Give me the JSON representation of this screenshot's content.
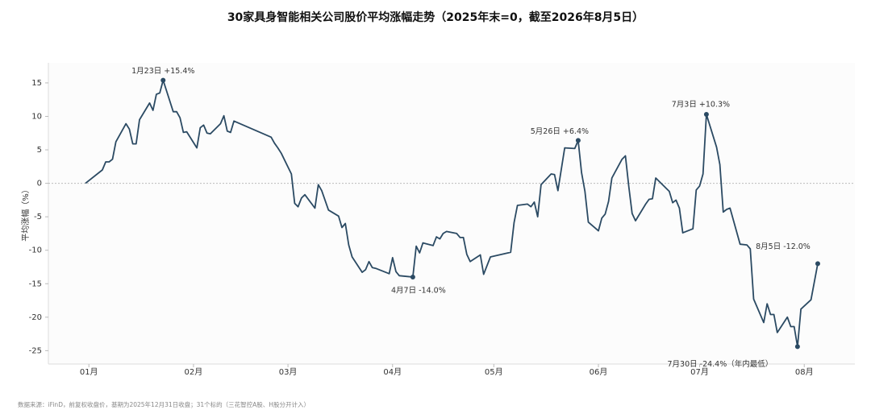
{
  "chart_data": {
    "type": "line",
    "title": "30家具身智能相关公司股价平均涨幅走势（2025年末=0，截至2026年8月5日）",
    "y_label": "平均涨幅（%）",
    "source": "数据来源：iFinD，前复权收盘价，基期为2025年12月31日收盘；31个标的（三花智控A股、H股分开计入）",
    "x": [
      "2025-12-31",
      "2026-01-05",
      "2026-01-06",
      "2026-01-07",
      "2026-01-08",
      "2026-01-09",
      "2026-01-12",
      "2026-01-13",
      "2026-01-14",
      "2026-01-15",
      "2026-01-16",
      "2026-01-19",
      "2026-01-20",
      "2026-01-21",
      "2026-01-22",
      "2026-01-23",
      "2026-01-26",
      "2026-01-27",
      "2026-01-28",
      "2026-01-29",
      "2026-01-30",
      "2026-02-02",
      "2026-02-03",
      "2026-02-04",
      "2026-02-05",
      "2026-02-06",
      "2026-02-09",
      "2026-02-10",
      "2026-02-11",
      "2026-02-12",
      "2026-02-13",
      "2026-02-24",
      "2026-02-25",
      "2026-02-26",
      "2026-02-27",
      "2026-03-02",
      "2026-03-03",
      "2026-03-04",
      "2026-03-05",
      "2026-03-06",
      "2026-03-09",
      "2026-03-10",
      "2026-03-11",
      "2026-03-13",
      "2026-03-16",
      "2026-03-17",
      "2026-03-18",
      "2026-03-19",
      "2026-03-20",
      "2026-03-23",
      "2026-03-24",
      "2026-03-25",
      "2026-03-26",
      "2026-03-27",
      "2026-03-31",
      "2026-04-01",
      "2026-04-02",
      "2026-04-03",
      "2026-04-07",
      "2026-04-08",
      "2026-04-09",
      "2026-04-10",
      "2026-04-13",
      "2026-04-14",
      "2026-04-15",
      "2026-04-16",
      "2026-04-17",
      "2026-04-20",
      "2026-04-21",
      "2026-04-22",
      "2026-04-23",
      "2026-04-24",
      "2026-04-27",
      "2026-04-28",
      "2026-04-30",
      "2026-05-06",
      "2026-05-07",
      "2026-05-08",
      "2026-05-11",
      "2026-05-12",
      "2026-05-13",
      "2026-05-14",
      "2026-05-15",
      "2026-05-18",
      "2026-05-19",
      "2026-05-20",
      "2026-05-22",
      "2026-05-25",
      "2026-05-26",
      "2026-05-27",
      "2026-05-28",
      "2026-05-29",
      "2026-06-01",
      "2026-06-02",
      "2026-06-03",
      "2026-06-04",
      "2026-06-05",
      "2026-06-08",
      "2026-06-09",
      "2026-06-10",
      "2026-06-11",
      "2026-06-12",
      "2026-06-15",
      "2026-06-16",
      "2026-06-17",
      "2026-06-18",
      "2026-06-22",
      "2026-06-23",
      "2026-06-24",
      "2026-06-25",
      "2026-06-26",
      "2026-06-29",
      "2026-06-30",
      "2026-07-01",
      "2026-07-02",
      "2026-07-03",
      "2026-07-06",
      "2026-07-07",
      "2026-07-08",
      "2026-07-09",
      "2026-07-10",
      "2026-07-13",
      "2026-07-15",
      "2026-07-16",
      "2026-07-17",
      "2026-07-20",
      "2026-07-21",
      "2026-07-22",
      "2026-07-23",
      "2026-07-24",
      "2026-07-27",
      "2026-07-28",
      "2026-07-29",
      "2026-07-30",
      "2026-07-31",
      "2026-08-03",
      "2026-08-05"
    ],
    "series": [
      {
        "color": "#2b4a63",
        "values": [
          0,
          2.0,
          3.2,
          3.2,
          3.6,
          6.2,
          8.9,
          8.1,
          5.9,
          5.9,
          9.5,
          12.0,
          10.9,
          13.3,
          13.5,
          15.4,
          10.7,
          10.7,
          9.8,
          7.6,
          7.7,
          5.3,
          8.3,
          8.7,
          7.5,
          7.4,
          8.9,
          10.1,
          7.8,
          7.6,
          9.3,
          6.9,
          6.0,
          5.3,
          4.5,
          1.4,
          -3.0,
          -3.5,
          -2.2,
          -1.7,
          -3.7,
          -0.2,
          -1.1,
          -4.0,
          -4.9,
          -6.6,
          -6.0,
          -9.2,
          -11.0,
          -13.3,
          -12.9,
          -11.7,
          -12.6,
          -12.7,
          -13.5,
          -11.1,
          -13.2,
          -13.8,
          -14.0,
          -9.4,
          -10.4,
          -8.9,
          -9.3,
          -8.0,
          -8.3,
          -7.5,
          -7.2,
          -7.5,
          -8.1,
          -8.1,
          -10.6,
          -11.7,
          -10.7,
          -13.6,
          -11.0,
          -10.3,
          -5.9,
          -3.3,
          -3.1,
          -3.5,
          -2.8,
          -5.0,
          -0.2,
          1.4,
          1.3,
          -1.1,
          5.3,
          5.2,
          6.4,
          1.6,
          -1.2,
          -5.8,
          -7.1,
          -5.2,
          -4.6,
          -2.7,
          0.8,
          3.6,
          4.1,
          -0.5,
          -4.5,
          -5.6,
          -3.1,
          -2.4,
          -2.3,
          0.8,
          -1.2,
          -2.9,
          -2.5,
          -3.7,
          -7.4,
          -6.8,
          -1.0,
          -0.4,
          1.4,
          10.3,
          5.4,
          2.8,
          -4.3,
          -3.9,
          -3.7,
          -9.1,
          -9.2,
          -9.8,
          -17.3,
          -20.8,
          -18.0,
          -19.6,
          -19.6,
          -22.3,
          -20.0,
          -21.4,
          -21.4,
          -24.4,
          -18.8,
          -17.4,
          -12.0
        ]
      }
    ],
    "annotations": [
      {
        "text": "1月23日 +15.4%"
      },
      {
        "text": "4月7日 -14.0%"
      },
      {
        "text": "5月26日 +6.4%"
      },
      {
        "text": "7月3日 +10.3%"
      },
      {
        "text": "8月5日 -12.0%"
      },
      {
        "text": "7月30日 -24.4%（年内最低）"
      }
    ],
    "xlim": [
      "2025-12-20",
      "2026-08-16"
    ],
    "xticks": [
      {
        "value": "2026-01-01",
        "label": "01月"
      },
      {
        "value": "2026-02-01",
        "label": "02月"
      },
      {
        "value": "2026-03-01",
        "label": "03月"
      },
      {
        "value": "2026-04-01",
        "label": "04月"
      },
      {
        "value": "2026-05-01",
        "label": "05月"
      },
      {
        "value": "2026-06-01",
        "label": "06月"
      },
      {
        "value": "2026-07-01",
        "label": "07月"
      },
      {
        "value": "2026-08-01",
        "label": "08月"
      }
    ],
    "ylim": [
      -27,
      18
    ],
    "yticks": [
      -25,
      -20,
      -15,
      -10,
      -5,
      0,
      5,
      10,
      15
    ]
  }
}
